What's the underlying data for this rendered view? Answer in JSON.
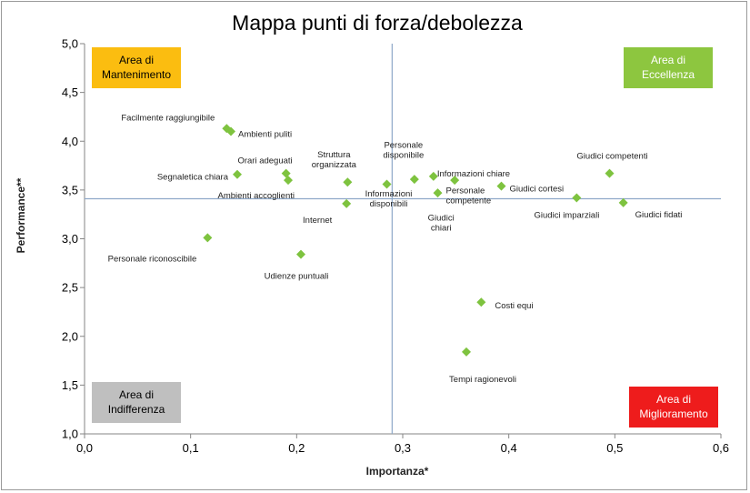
{
  "chart_data": {
    "type": "scatter",
    "title": "Mappa punti di forza/debolezza",
    "xlabel": "Importanza*",
    "ylabel": "Performance**",
    "xlim": [
      0.0,
      0.6
    ],
    "ylim": [
      1.0,
      5.0
    ],
    "x_ticks": [
      "0,0",
      "0,1",
      "0,2",
      "0,3",
      "0,4",
      "0,5",
      "0,6"
    ],
    "y_ticks": [
      "1,0",
      "1,5",
      "2,0",
      "2,5",
      "3,0",
      "3,5",
      "4,0",
      "4,5",
      "5,0"
    ],
    "grid": false,
    "marker": "diamond",
    "marker_color": "#7ec33f",
    "reference_lines": {
      "x": 0.29,
      "y": 3.41,
      "color": "#8fa9c9"
    },
    "quadrants": [
      {
        "label_lines": [
          "Area di",
          "Mantenimento"
        ],
        "position": "top-left",
        "fill": "#fbbd10",
        "text_color": "#000000"
      },
      {
        "label_lines": [
          "Area di",
          "Eccellenza"
        ],
        "position": "top-right",
        "fill": "#8dc63f",
        "text_color": "#ffffff"
      },
      {
        "label_lines": [
          "Area di",
          "Indifferenza"
        ],
        "position": "bottom-left",
        "fill": "#bfbfbf",
        "text_color": "#000000"
      },
      {
        "label_lines": [
          "Area di",
          "Miglioramento"
        ],
        "position": "bottom-right",
        "fill": "#ee1c1c",
        "text_color": "#ffffff"
      }
    ],
    "points": [
      {
        "label": [
          "Facilmente raggiungibile"
        ],
        "x": 0.134,
        "y": 4.13,
        "anchor": "end",
        "dx": -13,
        "dy": -12
      },
      {
        "label": [
          "Ambienti puliti"
        ],
        "x": 0.138,
        "y": 4.1,
        "anchor": "start",
        "dx": 8,
        "dy": 3
      },
      {
        "label": [
          "Segnaletica chiara"
        ],
        "x": 0.144,
        "y": 3.66,
        "anchor": "end",
        "dx": -10,
        "dy": 3
      },
      {
        "label": [
          "Orari adeguati"
        ],
        "x": 0.19,
        "y": 3.67,
        "anchor": "end",
        "dx": 7,
        "dy": -14
      },
      {
        "label": [
          "Ambienti accoglienti"
        ],
        "x": 0.192,
        "y": 3.6,
        "anchor": "end",
        "dx": 7,
        "dy": 17
      },
      {
        "label": [
          "Struttura",
          "organizzata"
        ],
        "x": 0.248,
        "y": 3.58,
        "anchor": "middle",
        "dx": -15,
        "dy": -25
      },
      {
        "label": [
          "Internet"
        ],
        "x": 0.247,
        "y": 3.36,
        "anchor": "middle",
        "dx": -32,
        "dy": 18
      },
      {
        "label": [
          "Informazioni",
          "disponibili"
        ],
        "x": 0.285,
        "y": 3.56,
        "anchor": "middle",
        "dx": 2,
        "dy": 16
      },
      {
        "label": [
          "Personale",
          "disponibile"
        ],
        "x": 0.311,
        "y": 3.61,
        "anchor": "middle",
        "dx": -12,
        "dy": -32
      },
      {
        "label": [
          "Informazioni chiare"
        ],
        "x": 0.329,
        "y": 3.64,
        "anchor": "start",
        "dx": 4,
        "dy": -3
      },
      {
        "label": [
          "Personale",
          "competente"
        ],
        "x": 0.333,
        "y": 3.47,
        "anchor": "start",
        "dx": 9,
        "dy": 3
      },
      {
        "label": [
          "Giudici",
          "chiari"
        ],
        "x": 0.349,
        "y": 3.6,
        "anchor": "middle",
        "dx": -15,
        "dy": 47
      },
      {
        "label": [
          "Giudici cortesi"
        ],
        "x": 0.393,
        "y": 3.54,
        "anchor": "start",
        "dx": 9,
        "dy": 3
      },
      {
        "label": [
          "Giudici imparziali"
        ],
        "x": 0.464,
        "y": 3.42,
        "anchor": "end",
        "dx": 25,
        "dy": 19
      },
      {
        "label": [
          "Giudici competenti"
        ],
        "x": 0.495,
        "y": 3.67,
        "anchor": "middle",
        "dx": 3,
        "dy": -19
      },
      {
        "label": [
          "Giudici fidati"
        ],
        "x": 0.508,
        "y": 3.37,
        "anchor": "start",
        "dx": 13,
        "dy": 13
      },
      {
        "label": [
          "Personale riconoscibile"
        ],
        "x": 0.116,
        "y": 3.01,
        "anchor": "end",
        "dx": -12,
        "dy": 23
      },
      {
        "label": [
          "Udienze puntuali"
        ],
        "x": 0.204,
        "y": 2.84,
        "anchor": "middle",
        "dx": -5,
        "dy": 24
      },
      {
        "label": [
          "Costi equi"
        ],
        "x": 0.374,
        "y": 2.35,
        "anchor": "start",
        "dx": 15,
        "dy": 4
      },
      {
        "label": [
          "Tempi ragionevoli"
        ],
        "x": 0.36,
        "y": 1.84,
        "anchor": "middle",
        "dx": 18,
        "dy": 30
      }
    ]
  }
}
